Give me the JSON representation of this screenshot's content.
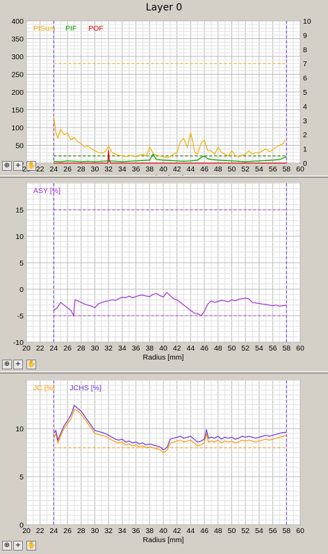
{
  "window_title": "Layer 0",
  "toolbar": {
    "zoom_icon": "zoom-icon",
    "crosshair_icon": "crosshair-icon",
    "pan_icon": "hand-icon",
    "crosshair_glyph": "+"
  },
  "colors": {
    "plot_bg": "#ffffff",
    "grid": "#c8c8c8",
    "pisum": "#f0b000",
    "pif": "#00a000",
    "pof": "#d00000",
    "asy": "#a030d0",
    "jc": "#ff9900",
    "jchs": "#6633dd",
    "marker": "#6633dd"
  },
  "chart_data": [
    {
      "type": "line",
      "xlabel": "Radius [mm]",
      "xlim": [
        20,
        60
      ],
      "x_ticks": [
        "20",
        "22",
        "24",
        "26",
        "28",
        "30",
        "32",
        "34",
        "36",
        "38",
        "40",
        "42",
        "44",
        "46",
        "48",
        "50",
        "52",
        "54",
        "56",
        "58",
        "60"
      ],
      "ylim": [
        0,
        400
      ],
      "y_ticks": [
        "0",
        "50",
        "100",
        "150",
        "200",
        "250",
        "300",
        "350",
        "400"
      ],
      "y2lim": [
        0,
        10
      ],
      "y2_ticks": [
        "0",
        "1",
        "2",
        "3",
        "4",
        "5",
        "6",
        "7",
        "8",
        "9",
        "10"
      ],
      "grid": true,
      "legend_position": "top-left",
      "markers_x": [
        24,
        58
      ],
      "series": [
        {
          "name": "PISum",
          "axis": "left",
          "x": [
            24,
            24.3,
            24.6,
            25,
            25.5,
            26,
            26.5,
            27,
            27.5,
            28,
            28.5,
            29,
            29.5,
            30,
            30.5,
            31,
            31.5,
            32,
            32.5,
            33,
            33.5,
            34,
            34.5,
            35,
            35.5,
            36,
            36.5,
            37,
            37.5,
            38,
            38.3,
            38.6,
            39,
            39.5,
            40,
            40.5,
            41,
            41.5,
            42,
            42.5,
            43,
            43.5,
            44,
            44.3,
            44.6,
            45,
            45.5,
            46,
            46.5,
            47,
            47.5,
            48,
            48.5,
            49,
            49.5,
            50,
            50.5,
            51,
            51.5,
            52,
            52.5,
            53,
            53.5,
            54,
            54.5,
            55,
            55.5,
            56,
            56.5,
            57,
            57.5,
            57.8
          ],
          "y": [
            130,
            85,
            70,
            95,
            80,
            85,
            65,
            72,
            60,
            55,
            45,
            48,
            40,
            35,
            30,
            28,
            32,
            48,
            30,
            25,
            22,
            20,
            18,
            22,
            20,
            18,
            22,
            25,
            20,
            45,
            35,
            25,
            22,
            20,
            18,
            15,
            18,
            25,
            30,
            60,
            70,
            45,
            85,
            60,
            30,
            25,
            55,
            65,
            35,
            35,
            25,
            45,
            30,
            25,
            20,
            35,
            22,
            18,
            22,
            25,
            35,
            25,
            30,
            28,
            35,
            40,
            32,
            38,
            45,
            50,
            55,
            65
          ]
        },
        {
          "name": "PIF",
          "axis": "left",
          "x": [
            24,
            25,
            26,
            27,
            28,
            29,
            30,
            31,
            32,
            33,
            34,
            35,
            36,
            37,
            38,
            38.5,
            39,
            40,
            41,
            42,
            43,
            44,
            45,
            45.5,
            46,
            46.5,
            47,
            48,
            49,
            50,
            51,
            52,
            53,
            54,
            55,
            56,
            57,
            58
          ],
          "y": [
            5,
            4,
            6,
            5,
            4,
            5,
            4,
            5,
            6,
            5,
            4,
            5,
            6,
            7,
            8,
            25,
            10,
            8,
            7,
            6,
            5,
            6,
            8,
            15,
            20,
            12,
            10,
            8,
            7,
            6,
            5,
            4,
            5,
            6,
            7,
            8,
            10,
            18
          ]
        },
        {
          "name": "POF",
          "axis": "right",
          "x": [
            24,
            31.9,
            32,
            32.1,
            32.3,
            58
          ],
          "y": [
            0,
            0,
            0.9,
            0.2,
            0,
            0
          ]
        }
      ],
      "reference_lines": [
        {
          "y": 280,
          "axis": "left",
          "color": "#f0b000"
        },
        {
          "y": 20,
          "axis": "left",
          "color": "#d00000"
        },
        {
          "y": 0.5,
          "axis": "right",
          "color": "#00a000"
        }
      ]
    },
    {
      "type": "line",
      "xlabel": "Radius [mm]",
      "xlim": [
        20,
        60
      ],
      "x_ticks": [
        "20",
        "22",
        "24",
        "26",
        "28",
        "30",
        "32",
        "34",
        "36",
        "38",
        "40",
        "42",
        "44",
        "46",
        "48",
        "50",
        "52",
        "54",
        "56",
        "58",
        "60"
      ],
      "ylim": [
        -10,
        20
      ],
      "y_ticks": [
        "-10",
        "-5",
        "0",
        "5",
        "10",
        "15"
      ],
      "grid": true,
      "legend_position": "top-left",
      "markers_x": [
        24,
        58
      ],
      "series": [
        {
          "name": "ASY [%]",
          "x": [
            24,
            24.5,
            25,
            25.5,
            26,
            26.5,
            26.9,
            27.1,
            27.5,
            28,
            28.5,
            29,
            29.5,
            30,
            30.5,
            31,
            31.5,
            32,
            32.5,
            33,
            33.5,
            34,
            34.5,
            35,
            35.5,
            36,
            36.5,
            37,
            37.5,
            38,
            38.5,
            39,
            39.5,
            40,
            40.5,
            41,
            41.5,
            42,
            42.5,
            43,
            43.5,
            44,
            44.5,
            45,
            45.5,
            46,
            46.5,
            47,
            47.5,
            48,
            48.5,
            49,
            49.5,
            50,
            50.5,
            51,
            51.5,
            52,
            52.5,
            53,
            53.5,
            54,
            54.5,
            55,
            55.5,
            56,
            56.5,
            57,
            57.5,
            58
          ],
          "y": [
            -4,
            -3.5,
            -2.5,
            -3,
            -3.5,
            -4,
            -5,
            -2,
            -2.2,
            -2.5,
            -2.8,
            -3,
            -3.2,
            -3.5,
            -2.8,
            -2.5,
            -2.3,
            -2.2,
            -2,
            -2.1,
            -1.8,
            -1.5,
            -1.6,
            -1.3,
            -1.6,
            -1.4,
            -1.2,
            -1.1,
            -1.3,
            -1.4,
            -1,
            -0.8,
            -1.2,
            -1.5,
            -0.6,
            -1.2,
            -1.8,
            -2,
            -2.5,
            -3,
            -3.5,
            -4,
            -4.5,
            -4.6,
            -5,
            -4.2,
            -2.8,
            -2.2,
            -2.5,
            -2.3,
            -2.1,
            -2.2,
            -2.4,
            -2,
            -2.2,
            -1.9,
            -1.8,
            -1.7,
            -1.8,
            -2.5,
            -2.6,
            -2.7,
            -2.8,
            -2.9,
            -3,
            -3.1,
            -3,
            -3.2,
            -3.1,
            -3
          ]
        }
      ],
      "reference_lines": [
        {
          "y": 15,
          "color": "#a030d0"
        },
        {
          "y": -5,
          "color": "#a030d0"
        }
      ]
    },
    {
      "type": "line",
      "xlabel": "Radius [mm]",
      "xlim": [
        20,
        60
      ],
      "x_ticks": [
        "20",
        "22",
        "24",
        "26",
        "28",
        "30",
        "32",
        "34",
        "36",
        "38",
        "40",
        "42",
        "44",
        "46",
        "48",
        "50",
        "52",
        "54",
        "56",
        "58",
        "60"
      ],
      "ylim": [
        0,
        15
      ],
      "y_ticks": [
        "0",
        "5",
        "10"
      ],
      "grid": true,
      "legend_position": "top-left",
      "markers_x": [
        24,
        58
      ],
      "series": [
        {
          "name": "JC [%]",
          "x": [
            24,
            24.3,
            24.6,
            25,
            25.5,
            26,
            26.5,
            27,
            27.5,
            28,
            28.5,
            29,
            29.5,
            30,
            30.5,
            31,
            31.5,
            32,
            32.5,
            33,
            33.5,
            34,
            34.5,
            35,
            35.5,
            36,
            36.5,
            37,
            37.5,
            38,
            38.5,
            39,
            39.5,
            40,
            40.3,
            40.6,
            41,
            41.5,
            42,
            42.5,
            43,
            43.5,
            44,
            44.5,
            45,
            45.5,
            46,
            46.3,
            46.6,
            47,
            47.5,
            48,
            48.5,
            49,
            49.5,
            50,
            50.5,
            51,
            51.5,
            52,
            52.5,
            53,
            53.5,
            54,
            54.5,
            55,
            55.5,
            56,
            56.5,
            57,
            57.5,
            58
          ],
          "y": [
            9,
            9.5,
            8.5,
            9.2,
            10,
            10.5,
            11,
            12,
            11.8,
            11.5,
            11,
            10.5,
            10,
            9.5,
            9.4,
            9.3,
            9.2,
            9,
            8.8,
            8.6,
            8.5,
            8.6,
            8.3,
            8.4,
            8.2,
            8.3,
            8.1,
            8.2,
            8,
            8.1,
            8,
            7.9,
            7.8,
            7.5,
            7.6,
            7.8,
            8.5,
            8.6,
            8.7,
            8.8,
            8.6,
            8.7,
            8.8,
            8.5,
            8.2,
            8.3,
            8.5,
            9.5,
            8.6,
            8.7,
            8.6,
            8.8,
            8.5,
            8.7,
            8.6,
            8.7,
            8.5,
            8.6,
            8.8,
            8.7,
            8.8,
            8.7,
            8.6,
            8.7,
            8.8,
            8.9,
            8.8,
            8.9,
            9,
            9.1,
            9.2,
            9.3
          ]
        },
        {
          "name": "JCHS [%]",
          "x": [
            24,
            24.3,
            24.6,
            25,
            25.5,
            26,
            26.5,
            27,
            27.5,
            28,
            28.5,
            29,
            29.5,
            30,
            30.5,
            31,
            31.5,
            32,
            32.5,
            33,
            33.5,
            34,
            34.5,
            35,
            35.5,
            36,
            36.5,
            37,
            37.5,
            38,
            38.5,
            39,
            39.5,
            40,
            40.3,
            40.6,
            41,
            41.5,
            42,
            42.5,
            43,
            43.5,
            44,
            44.5,
            45,
            45.5,
            46,
            46.3,
            46.6,
            47,
            47.5,
            48,
            48.5,
            49,
            49.5,
            50,
            50.5,
            51,
            51.5,
            52,
            52.5,
            53,
            53.5,
            54,
            54.5,
            55,
            55.5,
            56,
            56.5,
            57,
            57.5,
            58
          ],
          "y": [
            9.5,
            9.8,
            8.8,
            9.5,
            10.3,
            10.8,
            11.4,
            12.4,
            12.1,
            11.8,
            11.3,
            10.8,
            10.3,
            9.8,
            9.7,
            9.6,
            9.5,
            9.3,
            9.1,
            8.9,
            8.8,
            8.9,
            8.6,
            8.7,
            8.5,
            8.6,
            8.4,
            8.5,
            8.3,
            8.4,
            8.3,
            8.2,
            8.1,
            7.8,
            7.9,
            8.1,
            8.9,
            9,
            9.1,
            9.2,
            9,
            9.1,
            9.2,
            8.9,
            8.6,
            8.7,
            8.9,
            9.9,
            9,
            9.1,
            9,
            9.2,
            8.9,
            9.1,
            9,
            9.1,
            8.9,
            9,
            9.2,
            9.1,
            9.2,
            9.1,
            9,
            9.1,
            9.2,
            9.3,
            9.2,
            9.3,
            9.4,
            9.5,
            9.6,
            9.6
          ]
        }
      ],
      "reference_lines": [
        {
          "y": 8,
          "color": "#ff9900"
        }
      ]
    }
  ]
}
